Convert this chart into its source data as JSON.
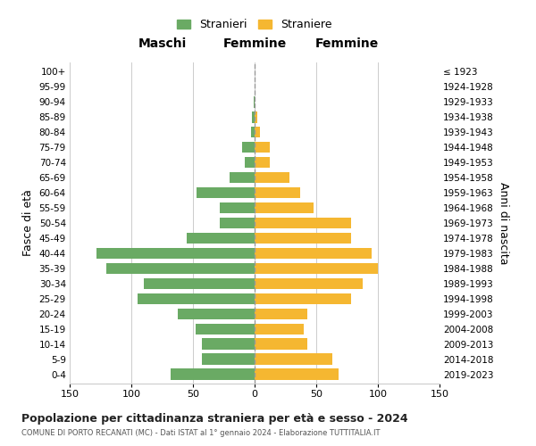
{
  "age_groups": [
    "0-4",
    "5-9",
    "10-14",
    "15-19",
    "20-24",
    "25-29",
    "30-34",
    "35-39",
    "40-44",
    "45-49",
    "50-54",
    "55-59",
    "60-64",
    "65-69",
    "70-74",
    "75-79",
    "80-84",
    "85-89",
    "90-94",
    "95-99",
    "100+"
  ],
  "birth_years": [
    "2019-2023",
    "2014-2018",
    "2009-2013",
    "2004-2008",
    "1999-2003",
    "1994-1998",
    "1989-1993",
    "1984-1988",
    "1979-1983",
    "1974-1978",
    "1969-1973",
    "1964-1968",
    "1959-1963",
    "1954-1958",
    "1949-1953",
    "1944-1948",
    "1939-1943",
    "1934-1938",
    "1929-1933",
    "1924-1928",
    "≤ 1923"
  ],
  "males": [
    68,
    43,
    43,
    48,
    62,
    95,
    90,
    120,
    128,
    55,
    28,
    28,
    47,
    20,
    8,
    10,
    3,
    2,
    1,
    0,
    0
  ],
  "females": [
    68,
    63,
    43,
    40,
    43,
    78,
    88,
    100,
    95,
    78,
    78,
    48,
    37,
    28,
    12,
    12,
    4,
    2,
    0,
    0,
    0
  ],
  "male_color": "#6aaa64",
  "female_color": "#f5b731",
  "center_line_color": "#999999",
  "grid_color": "#cccccc",
  "background_color": "#ffffff",
  "title": "Popolazione per cittadinanza straniera per età e sesso - 2024",
  "subtitle": "COMUNE DI PORTO RECANATI (MC) - Dati ISTAT al 1° gennaio 2024 - Elaborazione TUTTITALIA.IT",
  "xlabel_left": "Maschi",
  "xlabel_right": "Femmine",
  "ylabel_left": "Fasce di età",
  "ylabel_right": "Anni di nascita",
  "legend_male": "Stranieri",
  "legend_female": "Straniere",
  "xlim": 150,
  "bar_height": 0.75
}
